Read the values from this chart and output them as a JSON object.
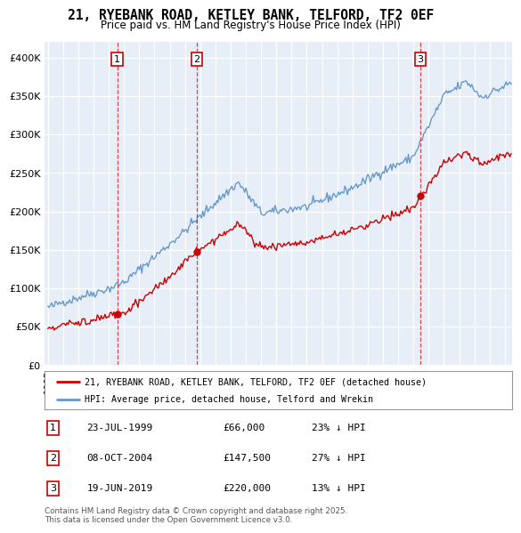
{
  "title": "21, RYEBANK ROAD, KETLEY BANK, TELFORD, TF2 0EF",
  "subtitle": "Price paid vs. HM Land Registry's House Price Index (HPI)",
  "sale_dates_num": [
    1999.556,
    2004.772,
    2019.466
  ],
  "sale_prices": [
    66000,
    147500,
    220000
  ],
  "sale_labels": [
    "1",
    "2",
    "3"
  ],
  "sale_info": [
    {
      "num": "1",
      "date": "23-JUL-1999",
      "price": "£66,000",
      "pct": "23% ↓ HPI"
    },
    {
      "num": "2",
      "date": "08-OCT-2004",
      "price": "£147,500",
      "pct": "27% ↓ HPI"
    },
    {
      "num": "3",
      "date": "19-JUN-2019",
      "price": "£220,000",
      "pct": "13% ↓ HPI"
    }
  ],
  "legend_line1": "21, RYEBANK ROAD, KETLEY BANK, TELFORD, TF2 0EF (detached house)",
  "legend_line2": "HPI: Average price, detached house, Telford and Wrekin",
  "footer": "Contains HM Land Registry data © Crown copyright and database right 2025.\nThis data is licensed under the Open Government Licence v3.0.",
  "price_line_color": "#cc0000",
  "hpi_line_color": "#6699cc",
  "background_color": "#e8eef8",
  "ylim": [
    0,
    420000
  ],
  "xlim_start": 1994.8,
  "xlim_end": 2025.5
}
